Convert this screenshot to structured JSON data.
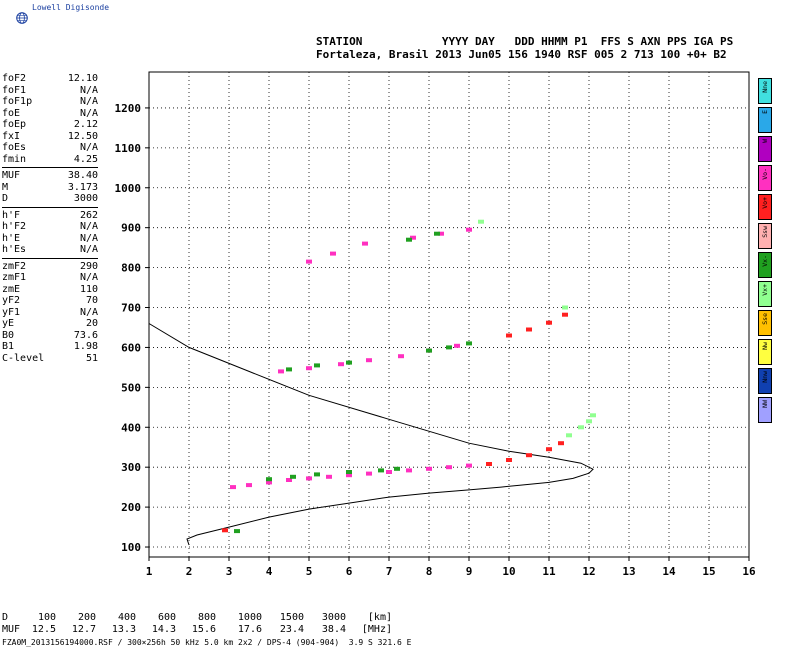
{
  "logo": {
    "text": "Lowell Digisonde",
    "icon": "globe-icon"
  },
  "header": {
    "line1": "STATION            YYYY DAY   DDD HHMM P1  FFS S AXN PPS IGA PS",
    "line2": "Fortaleza, Brasil 2013 Jun05 156 1940 RSF 005 2 713 100 +0+ B2"
  },
  "params": {
    "group1": [
      {
        "k": "foF2",
        "v": "12.10"
      },
      {
        "k": "foF1",
        "v": "N/A"
      },
      {
        "k": "foF1p",
        "v": "N/A"
      },
      {
        "k": "foE",
        "v": "N/A"
      },
      {
        "k": "foEp",
        "v": "2.12"
      },
      {
        "k": "fxI",
        "v": "12.50"
      },
      {
        "k": "foEs",
        "v": "N/A"
      },
      {
        "k": "fmin",
        "v": "4.25"
      }
    ],
    "group2": [
      {
        "k": "MUF",
        "v": "38.40"
      },
      {
        "k": "M",
        "v": "3.173"
      },
      {
        "k": "D",
        "v": "3000"
      }
    ],
    "group3": [
      {
        "k": "h'F",
        "v": "262"
      },
      {
        "k": "h'F2",
        "v": "N/A"
      },
      {
        "k": "h'E",
        "v": "N/A"
      },
      {
        "k": "h'Es",
        "v": "N/A"
      }
    ],
    "group4": [
      {
        "k": "zmF2",
        "v": "290"
      },
      {
        "k": "zmF1",
        "v": "N/A"
      },
      {
        "k": "zmE",
        "v": "110"
      },
      {
        "k": "yF2",
        "v": "70"
      },
      {
        "k": "yF1",
        "v": "N/A"
      },
      {
        "k": "yE",
        "v": "20"
      },
      {
        "k": "B0",
        "v": "73.6"
      },
      {
        "k": "B1",
        "v": "1.98"
      },
      {
        "k": "C-level",
        "v": "51"
      }
    ]
  },
  "legend": [
    {
      "label": "Nne",
      "color": "#40e0e0"
    },
    {
      "label": "E",
      "color": "#2aa8e8"
    },
    {
      "label": "W",
      "color": "#b000c0"
    },
    {
      "label": "Vo-",
      "color": "#ff30c0"
    },
    {
      "label": "Vo+",
      "color": "#ff2020"
    },
    {
      "label": "Ssw",
      "color": "#ffb0b0"
    },
    {
      "label": "Vx-",
      "color": "#20a020"
    },
    {
      "label": "Vx+",
      "color": "#90ff90"
    },
    {
      "label": "Sse",
      "color": "#ffc000"
    },
    {
      "label": "Nw",
      "color": "#ffff40"
    },
    {
      "label": "Nnw",
      "color": "#1040b0"
    },
    {
      "label": "NW",
      "color": "#a0a0ff"
    }
  ],
  "footer": {
    "d_label": "D",
    "d_values": [
      "100",
      "200",
      "400",
      "600",
      "800",
      "1000",
      "1500",
      "3000",
      "[km]"
    ],
    "muf_label": "MUF",
    "muf_values": [
      "12.5",
      "12.7",
      "13.3",
      "14.3",
      "15.6",
      "17.6",
      "23.4",
      "38.4",
      "[MHz]"
    ],
    "file_line": "FZA0M_2013156194000.RSF / 300×256h 50 kHz 5.0 km 2x2 / DPS-4 (904-904)  3.9 S 321.6 E"
  },
  "chart_data": {
    "type": "scatter",
    "title": "",
    "xlabel": "",
    "ylabel": "",
    "xlim": [
      1,
      16
    ],
    "ylim": [
      75,
      1290
    ],
    "xticks": [
      1,
      2,
      3,
      4,
      5,
      6,
      7,
      8,
      9,
      10,
      11,
      12,
      13,
      14,
      15,
      16
    ],
    "yticks": [
      100,
      200,
      300,
      400,
      500,
      600,
      700,
      800,
      900,
      1000,
      1100,
      1200
    ],
    "grid": "dotted",
    "profile_curve": {
      "name": "",
      "x": [
        2.0,
        1.95,
        2.2,
        3.0,
        4.0,
        5.0,
        6.0,
        7.0,
        8.0,
        9.0,
        9.8,
        10.3,
        11.0,
        11.6,
        12.0,
        12.1,
        11.8,
        11.0,
        10.0,
        9.0,
        7.0,
        5.0,
        3.5,
        2.0,
        1.0
      ],
      "y": [
        105,
        120,
        130,
        150,
        175,
        195,
        210,
        225,
        235,
        243,
        250,
        255,
        262,
        272,
        285,
        295,
        310,
        325,
        340,
        360,
        420,
        480,
        540,
        600,
        660
      ]
    },
    "series": [
      {
        "name": "Vo-",
        "color": "#ff30c0",
        "x": [
          3.1,
          3.5,
          4.0,
          4.5,
          5.0,
          5.5,
          6.0,
          6.5,
          7.0,
          7.5,
          8.0,
          8.5,
          9.0,
          4.3,
          5.0,
          5.8,
          6.5,
          7.3,
          8.0,
          8.7,
          5.0,
          5.6,
          6.4,
          7.6,
          8.3,
          9.0
        ],
        "y": [
          250,
          255,
          262,
          268,
          272,
          276,
          280,
          284,
          288,
          292,
          296,
          300,
          304,
          540,
          548,
          558,
          568,
          578,
          592,
          604,
          815,
          835,
          860,
          875,
          885,
          895
        ]
      },
      {
        "name": "Vo+",
        "color": "#ff2020",
        "x": [
          2.9,
          9.5,
          10.0,
          10.5,
          11.0,
          11.3,
          10.0,
          10.5,
          11.0,
          11.4
        ],
        "y": [
          142,
          308,
          318,
          330,
          345,
          360,
          630,
          645,
          662,
          682
        ]
      },
      {
        "name": "Vx-",
        "color": "#20a020",
        "x": [
          3.2,
          4.0,
          4.6,
          5.2,
          6.0,
          6.8,
          7.2,
          4.5,
          5.2,
          6.0,
          8.0,
          8.5,
          9.0,
          7.5,
          8.2
        ],
        "y": [
          140,
          270,
          276,
          282,
          288,
          292,
          296,
          545,
          555,
          562,
          592,
          600,
          610,
          870,
          885
        ]
      },
      {
        "name": "Vx+",
        "color": "#90ff90",
        "x": [
          11.5,
          11.8,
          12.0,
          12.1,
          11.4,
          9.3
        ],
        "y": [
          380,
          400,
          415,
          430,
          700,
          915
        ]
      }
    ]
  }
}
